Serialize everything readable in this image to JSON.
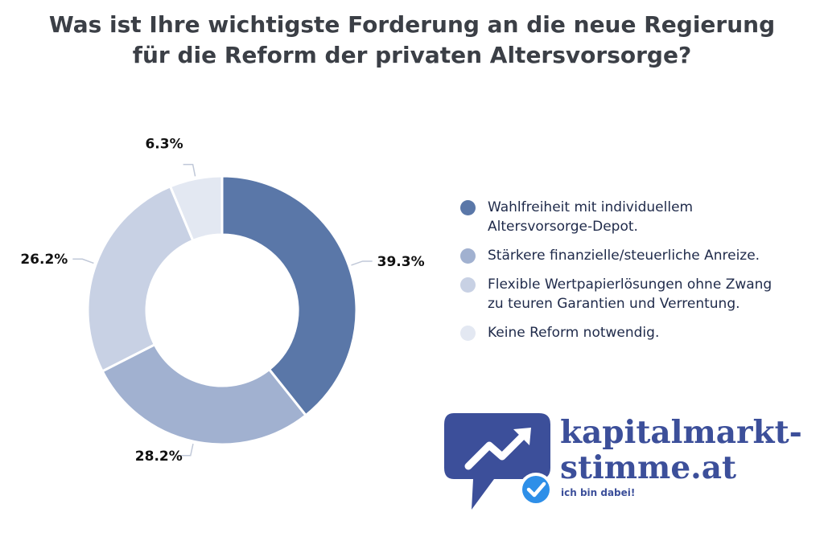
{
  "chart_data": {
    "type": "pie",
    "title_lines": [
      "Was ist Ihre wichtigste Forderung an die neue Regierung",
      "für die Reform der privaten Altersvorsorge?"
    ],
    "categories": [
      "Wahlfreiheit mit individuellem Altersvorsorge-Depot.",
      "Stärkere finanzielle/steuerliche Anreize.",
      "Flexible Wertpapierlösungen ohne Zwang zu teuren Garantien und Verrentung.",
      "Keine Reform notwendig."
    ],
    "legend_lines": [
      [
        "Wahlfreiheit mit individuellem",
        "Altersvorsorge-Depot."
      ],
      [
        "Stärkere finanzielle/steuerliche Anreize."
      ],
      [
        "Flexible Wertpapierlösungen ohne Zwang",
        "zu teuren Garantien und Verrentung."
      ],
      [
        "Keine Reform notwendig."
      ]
    ],
    "values": [
      39.3,
      28.2,
      26.2,
      6.3
    ],
    "value_labels": [
      "39.3%",
      "28.2%",
      "26.2%",
      "6.3%"
    ],
    "colors": [
      "#5a77a8",
      "#a1b1d0",
      "#c8d1e4",
      "#e3e8f2"
    ],
    "donut": true,
    "legend_position": "right"
  },
  "logo": {
    "line1": "kapitalmarkt-",
    "line2": "stimme.at",
    "tagline": "ich bin dabei!",
    "icon": "chat-bubble-trend-arrow-icon",
    "badge_icon": "check-badge-icon",
    "colors": {
      "brand": "#3c4f9a",
      "badge": "#2e8fe8"
    }
  }
}
